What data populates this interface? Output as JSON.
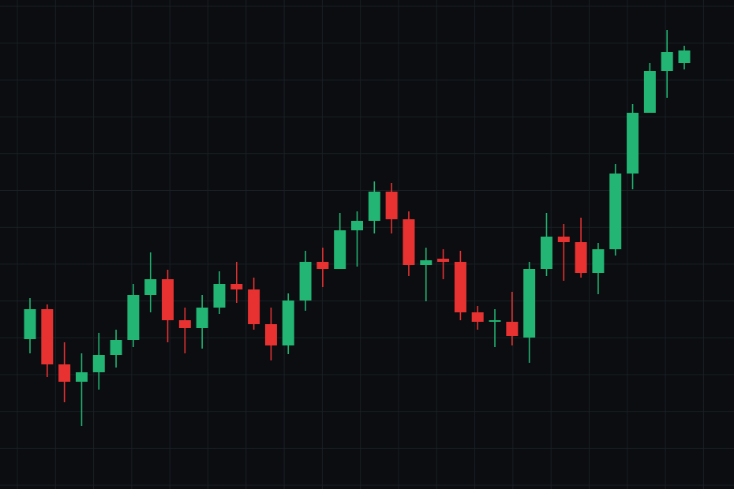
{
  "colors": {
    "background": "#0b0d10",
    "grid": "#1a2024",
    "up": "#22b573",
    "down": "#e83232"
  },
  "chart_data": {
    "type": "candlestick",
    "title": "",
    "xlabel": "",
    "ylabel": "",
    "axes_visible": false,
    "grid": true,
    "ylim": [
      0,
      620
    ],
    "candles": [
      {
        "open": 190,
        "close": 228,
        "high": 242,
        "low": 172
      },
      {
        "open": 228,
        "close": 158,
        "high": 234,
        "low": 142
      },
      {
        "open": 158,
        "close": 136,
        "high": 186,
        "low": 110
      },
      {
        "open": 136,
        "close": 148,
        "high": 172,
        "low": 80
      },
      {
        "open": 148,
        "close": 170,
        "high": 198,
        "low": 126
      },
      {
        "open": 170,
        "close": 189,
        "high": 202,
        "low": 154
      },
      {
        "open": 189,
        "close": 246,
        "high": 260,
        "low": 180
      },
      {
        "open": 246,
        "close": 266,
        "high": 300,
        "low": 224
      },
      {
        "open": 266,
        "close": 214,
        "high": 278,
        "low": 186
      },
      {
        "open": 214,
        "close": 204,
        "high": 230,
        "low": 172
      },
      {
        "open": 204,
        "close": 230,
        "high": 246,
        "low": 178
      },
      {
        "open": 230,
        "close": 260,
        "high": 276,
        "low": 222
      },
      {
        "open": 260,
        "close": 253,
        "high": 288,
        "low": 236
      },
      {
        "open": 253,
        "close": 209,
        "high": 268,
        "low": 202
      },
      {
        "open": 209,
        "close": 182,
        "high": 230,
        "low": 163
      },
      {
        "open": 182,
        "close": 239,
        "high": 248,
        "low": 171
      },
      {
        "open": 239,
        "close": 288,
        "high": 302,
        "low": 226
      },
      {
        "open": 288,
        "close": 279,
        "high": 306,
        "low": 256
      },
      {
        "open": 279,
        "close": 328,
        "high": 350,
        "low": 280
      },
      {
        "open": 328,
        "close": 340,
        "high": 352,
        "low": 282
      },
      {
        "open": 340,
        "close": 377,
        "high": 390,
        "low": 324
      },
      {
        "open": 377,
        "close": 342,
        "high": 388,
        "low": 324
      },
      {
        "open": 342,
        "close": 284,
        "high": 352,
        "low": 270
      },
      {
        "open": 284,
        "close": 290,
        "high": 306,
        "low": 238
      },
      {
        "open": 292,
        "close": 288,
        "high": 304,
        "low": 266
      },
      {
        "open": 288,
        "close": 224,
        "high": 302,
        "low": 214
      },
      {
        "open": 224,
        "close": 212,
        "high": 232,
        "low": 202
      },
      {
        "open": 212,
        "close": 214,
        "high": 228,
        "low": 180
      },
      {
        "open": 212,
        "close": 194,
        "high": 250,
        "low": 182
      },
      {
        "open": 192,
        "close": 279,
        "high": 288,
        "low": 160
      },
      {
        "open": 279,
        "close": 320,
        "high": 350,
        "low": 270
      },
      {
        "open": 320,
        "close": 313,
        "high": 336,
        "low": 264
      },
      {
        "open": 313,
        "close": 274,
        "high": 344,
        "low": 268
      },
      {
        "open": 274,
        "close": 304,
        "high": 312,
        "low": 247
      },
      {
        "open": 304,
        "close": 400,
        "high": 412,
        "low": 296
      },
      {
        "open": 400,
        "close": 477,
        "high": 488,
        "low": 380
      },
      {
        "open": 477,
        "close": 530,
        "high": 540,
        "low": 478
      },
      {
        "open": 530,
        "close": 554,
        "high": 582,
        "low": 496
      },
      {
        "open": 540,
        "close": 556,
        "high": 562,
        "low": 532
      }
    ]
  }
}
